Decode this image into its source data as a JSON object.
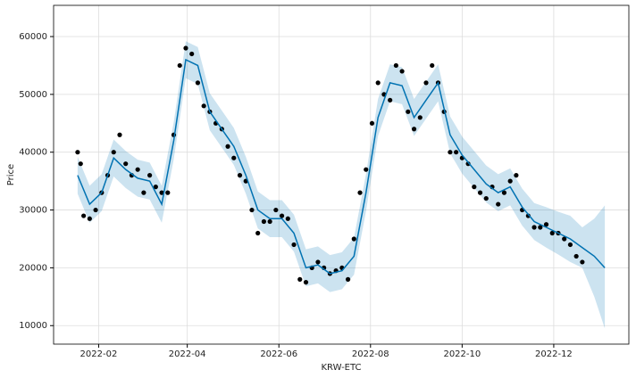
{
  "chart_data": {
    "type": "forecast",
    "xlabel": "KRW-ETC",
    "ylabel": "Price",
    "xlim": [
      "2022-01-02",
      "2023-01-20"
    ],
    "ylim": [
      6800,
      65400
    ],
    "xticks": [
      "2022-02",
      "2022-04",
      "2022-06",
      "2022-08",
      "2022-10",
      "2022-12"
    ],
    "yticks": [
      10000,
      20000,
      30000,
      40000,
      50000,
      60000
    ],
    "grid": true,
    "observed": {
      "color": "#000000",
      "x": [
        "2022-01-18",
        "2022-01-20",
        "2022-01-22",
        "2022-01-26",
        "2022-01-30",
        "2022-02-03",
        "2022-02-07",
        "2022-02-11",
        "2022-02-15",
        "2022-02-19",
        "2022-02-23",
        "2022-02-27",
        "2022-03-03",
        "2022-03-07",
        "2022-03-11",
        "2022-03-15",
        "2022-03-19",
        "2022-03-23",
        "2022-03-27",
        "2022-03-31",
        "2022-04-04",
        "2022-04-08",
        "2022-04-12",
        "2022-04-16",
        "2022-04-20",
        "2022-04-24",
        "2022-04-28",
        "2022-05-02",
        "2022-05-06",
        "2022-05-10",
        "2022-05-14",
        "2022-05-18",
        "2022-05-22",
        "2022-05-26",
        "2022-05-30",
        "2022-06-03",
        "2022-06-07",
        "2022-06-11",
        "2022-06-15",
        "2022-06-19",
        "2022-06-23",
        "2022-06-27",
        "2022-07-01",
        "2022-07-05",
        "2022-07-09",
        "2022-07-13",
        "2022-07-17",
        "2022-07-21",
        "2022-07-25",
        "2022-07-29",
        "2022-08-02",
        "2022-08-06",
        "2022-08-10",
        "2022-08-14",
        "2022-08-18",
        "2022-08-22",
        "2022-08-26",
        "2022-08-30",
        "2022-09-03",
        "2022-09-07",
        "2022-09-11",
        "2022-09-15",
        "2022-09-19",
        "2022-09-23",
        "2022-09-27",
        "2022-10-01",
        "2022-10-05",
        "2022-10-09",
        "2022-10-13",
        "2022-10-17",
        "2022-10-21",
        "2022-10-25",
        "2022-10-29",
        "2022-11-02",
        "2022-11-06",
        "2022-11-10",
        "2022-11-14",
        "2022-11-18",
        "2022-11-22",
        "2022-11-26",
        "2022-11-30",
        "2022-12-04",
        "2022-12-08",
        "2022-12-12",
        "2022-12-16",
        "2022-12-20"
      ],
      "values": [
        40000,
        38000,
        29000,
        28500,
        30000,
        33000,
        36000,
        40000,
        43000,
        38000,
        36000,
        37000,
        33000,
        36000,
        34000,
        33000,
        33000,
        43000,
        55000,
        58000,
        57000,
        52000,
        48000,
        47000,
        45000,
        44000,
        41000,
        39000,
        36000,
        35000,
        30000,
        26000,
        28000,
        28000,
        30000,
        29000,
        28500,
        24000,
        18000,
        17500,
        20000,
        21000,
        20000,
        19000,
        19500,
        20000,
        18000,
        25000,
        33000,
        37000,
        45000,
        52000,
        50000,
        49000,
        55000,
        54000,
        47000,
        44000,
        46000,
        52000,
        55000,
        52000,
        47000,
        40000,
        40000,
        39000,
        38000,
        34000,
        33000,
        32000,
        34000,
        31000,
        33000,
        35000,
        36000,
        30000,
        29000,
        27000,
        27000,
        27500,
        26000,
        26000,
        25000,
        24000,
        22000,
        21000
      ]
    },
    "forecast": {
      "color": "#0072B2",
      "x": [
        "2022-01-18",
        "2022-01-26",
        "2022-02-03",
        "2022-02-11",
        "2022-02-19",
        "2022-02-27",
        "2022-03-07",
        "2022-03-15",
        "2022-03-23",
        "2022-03-31",
        "2022-04-08",
        "2022-04-16",
        "2022-04-24",
        "2022-05-02",
        "2022-05-10",
        "2022-05-18",
        "2022-05-26",
        "2022-06-03",
        "2022-06-11",
        "2022-06-19",
        "2022-06-27",
        "2022-07-05",
        "2022-07-13",
        "2022-07-21",
        "2022-07-29",
        "2022-08-06",
        "2022-08-14",
        "2022-08-22",
        "2022-08-30",
        "2022-09-07",
        "2022-09-15",
        "2022-09-23",
        "2022-10-01",
        "2022-10-09",
        "2022-10-17",
        "2022-10-25",
        "2022-11-02",
        "2022-11-10",
        "2022-11-18",
        "2022-11-26",
        "2022-12-04",
        "2022-12-12",
        "2022-12-20",
        "2022-12-28",
        "2023-01-04"
      ],
      "values": [
        36000,
        31000,
        33000,
        39000,
        37000,
        35500,
        35000,
        31000,
        42000,
        56000,
        55000,
        47000,
        44000,
        41000,
        36000,
        30000,
        28500,
        28500,
        26000,
        20000,
        20500,
        19000,
        19500,
        22000,
        33000,
        46000,
        52000,
        51500,
        46000,
        49000,
        52000,
        43000,
        39500,
        37000,
        34500,
        33000,
        34000,
        30500,
        28000,
        27000,
        26000,
        25000,
        23500,
        22000,
        20000
      ],
      "lower": [
        32800,
        27800,
        29800,
        35800,
        33800,
        32300,
        31800,
        27800,
        38800,
        52800,
        51800,
        43800,
        40800,
        37800,
        32800,
        26800,
        25300,
        25300,
        22800,
        16800,
        17300,
        15800,
        16300,
        18800,
        29800,
        42800,
        48800,
        48300,
        42800,
        45800,
        48800,
        39800,
        36300,
        33800,
        31300,
        29800,
        30800,
        27300,
        24800,
        23500,
        22300,
        21000,
        20000,
        15000,
        9500
      ],
      "upper": [
        39200,
        34200,
        36200,
        42200,
        40200,
        38700,
        38200,
        34200,
        45200,
        59200,
        58200,
        50200,
        47200,
        44200,
        39200,
        33200,
        31700,
        31700,
        29200,
        23200,
        23700,
        22200,
        22700,
        25200,
        36200,
        49200,
        55200,
        54700,
        49200,
        52200,
        55200,
        46200,
        42700,
        40200,
        37700,
        36200,
        37200,
        33700,
        31200,
        30500,
        29700,
        29000,
        27000,
        28500,
        30800
      ]
    }
  }
}
